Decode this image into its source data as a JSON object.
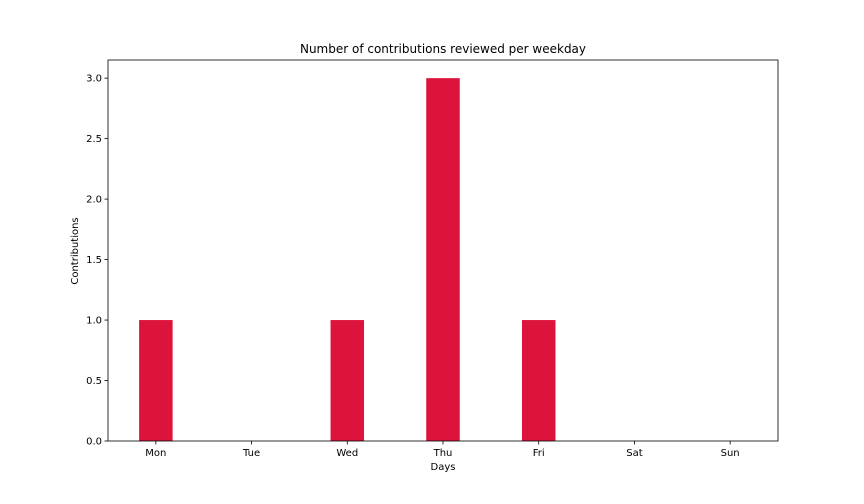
{
  "chart_data": {
    "type": "bar",
    "title": "Number of contributions reviewed per weekday",
    "xlabel": "Days",
    "ylabel": "Contributions",
    "categories": [
      "Mon",
      "Tue",
      "Wed",
      "Thu",
      "Fri",
      "Sat",
      "Sun"
    ],
    "values": [
      1,
      0,
      1,
      3,
      1,
      0,
      0
    ],
    "ylim": [
      0,
      3.15
    ],
    "yticks": [
      0.0,
      0.5,
      1.0,
      1.5,
      2.0,
      2.5,
      3.0
    ],
    "ytick_labels": [
      "0.0",
      "0.5",
      "1.0",
      "1.5",
      "2.0",
      "2.5",
      "3.0"
    ],
    "bar_color": "#dc143c",
    "grid": false,
    "legend": "none"
  }
}
